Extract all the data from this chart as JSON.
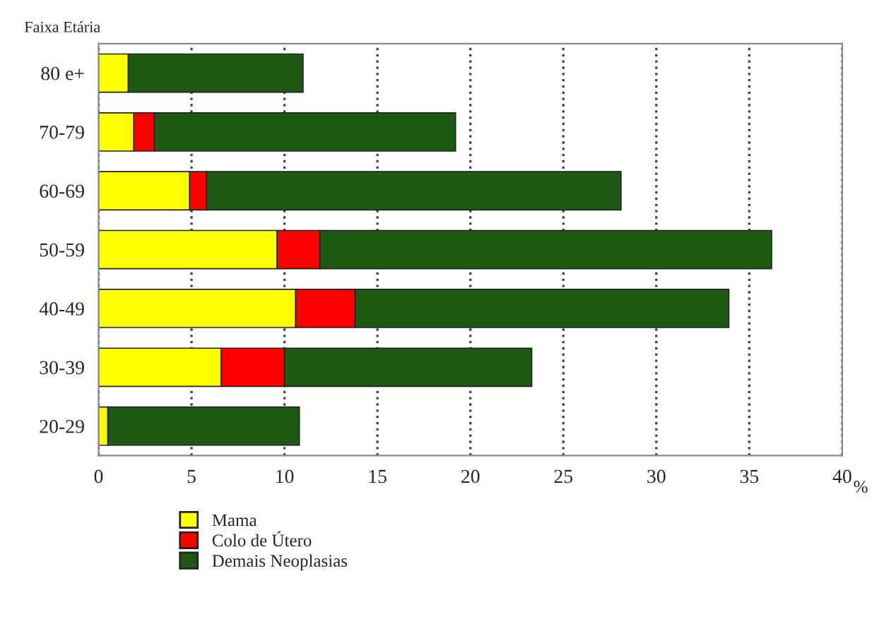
{
  "chart_data": {
    "type": "bar",
    "orientation": "horizontal",
    "stacked": true,
    "ylabel": "Faixa Etária",
    "xlabel": "%",
    "categories": [
      "80 e+",
      "70-79",
      "60-69",
      "50-59",
      "40-49",
      "30-39",
      "20-29"
    ],
    "series": [
      {
        "name": "Mama",
        "color": "#ffff00",
        "values": [
          1.6,
          1.9,
          4.9,
          9.6,
          10.6,
          6.6,
          0.5
        ]
      },
      {
        "name": "Colo de Útero",
        "color": "#ff0000",
        "values": [
          null,
          1.1,
          0.9,
          2.3,
          3.2,
          3.4,
          null
        ]
      },
      {
        "name": "Demais Neoplasias",
        "color": "#1e5a14",
        "values": [
          9.4,
          16.2,
          22.3,
          24.3,
          20.1,
          13.3,
          10.3
        ]
      }
    ],
    "xlim": [
      0,
      40
    ],
    "xticks": [
      0,
      5,
      10,
      15,
      20,
      25,
      30,
      35,
      40
    ],
    "grid": "x",
    "legend": "bottom left"
  }
}
